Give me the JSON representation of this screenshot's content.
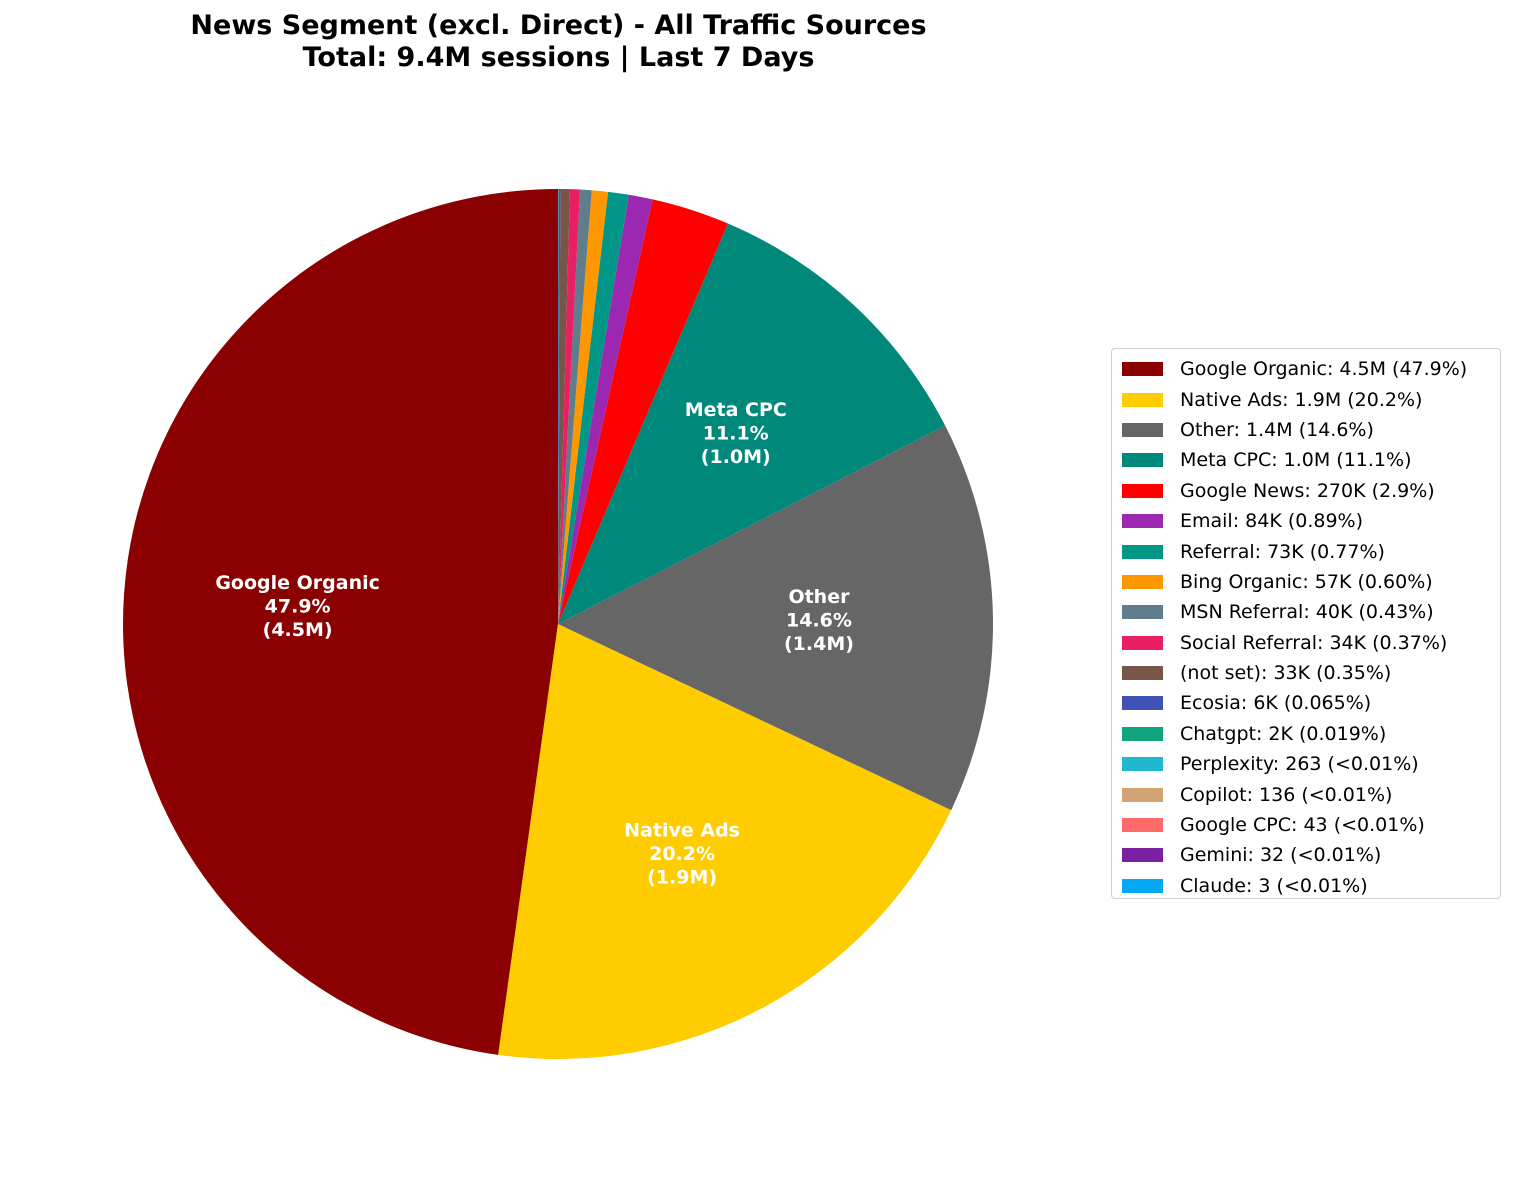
{
  "chart_data": {
    "type": "pie",
    "title": "News Segment (excl. Direct) - All Traffic Sources",
    "subtitle": "Total: 9.4M sessions | Last 7 Days",
    "total_sessions": "9.4M",
    "start_angle_deg": 90,
    "direction": "counterclockwise",
    "legend_position": "right",
    "slices": [
      {
        "name": "Google Organic",
        "value_label": "4.5M",
        "percent": 47.9,
        "percent_label": "47.9%",
        "color": "#8B0000",
        "legend": "Google Organic: 4.5M (47.9%)",
        "inner_label": [
          "Google Organic",
          "47.9%",
          "(4.5M)"
        ]
      },
      {
        "name": "Native Ads",
        "value_label": "1.9M",
        "percent": 20.2,
        "percent_label": "20.2%",
        "color": "#FFCC00",
        "legend": "Native Ads: 1.9M (20.2%)",
        "inner_label": [
          "Native Ads",
          "20.2%",
          "(1.9M)"
        ]
      },
      {
        "name": "Other",
        "value_label": "1.4M",
        "percent": 14.6,
        "percent_label": "14.6%",
        "color": "#666666",
        "legend": "Other: 1.4M (14.6%)",
        "inner_label": [
          "Other",
          "14.6%",
          "(1.4M)"
        ]
      },
      {
        "name": "Meta CPC",
        "value_label": "1.0M",
        "percent": 11.1,
        "percent_label": "11.1%",
        "color": "#00897B",
        "legend": "Meta CPC: 1.0M (11.1%)",
        "inner_label": [
          "Meta CPC",
          "11.1%",
          "(1.0M)"
        ]
      },
      {
        "name": "Google News",
        "value_label": "270K",
        "percent": 2.9,
        "percent_label": "2.9%",
        "color": "#FF0000",
        "legend": "Google News: 270K (2.9%)"
      },
      {
        "name": "Email",
        "value_label": "84K",
        "percent": 0.89,
        "percent_label": "0.89%",
        "color": "#9C27B0",
        "legend": "Email: 84K (0.89%)"
      },
      {
        "name": "Referral",
        "value_label": "73K",
        "percent": 0.77,
        "percent_label": "0.77%",
        "color": "#009688",
        "legend": "Referral: 73K (0.77%)"
      },
      {
        "name": "Bing Organic",
        "value_label": "57K",
        "percent": 0.6,
        "percent_label": "0.60%",
        "color": "#FF9800",
        "legend": "Bing Organic: 57K (0.60%)"
      },
      {
        "name": "MSN Referral",
        "value_label": "40K",
        "percent": 0.43,
        "percent_label": "0.43%",
        "color": "#607D8B",
        "legend": "MSN Referral: 40K (0.43%)"
      },
      {
        "name": "Social Referral",
        "value_label": "34K",
        "percent": 0.37,
        "percent_label": "0.37%",
        "color": "#E91E63",
        "legend": "Social Referral: 34K (0.37%)"
      },
      {
        "name": "(not set)",
        "value_label": "33K",
        "percent": 0.35,
        "percent_label": "0.35%",
        "color": "#795548",
        "legend": "(not set): 33K (0.35%)"
      },
      {
        "name": "Ecosia",
        "value_label": "6K",
        "percent": 0.065,
        "percent_label": "0.065%",
        "color": "#3F51B5",
        "legend": "Ecosia: 6K (0.065%)"
      },
      {
        "name": "Chatgpt",
        "value_label": "2K",
        "percent": 0.019,
        "percent_label": "0.019%",
        "color": "#10A37F",
        "legend": "Chatgpt: 2K (0.019%)"
      },
      {
        "name": "Perplexity",
        "value_label": "263",
        "percent": 0.0028,
        "percent_label": "<0.01%",
        "color": "#20B8CD",
        "legend": "Perplexity: 263 (<0.01%)"
      },
      {
        "name": "Copilot",
        "value_label": "136",
        "percent": 0.0014,
        "percent_label": "<0.01%",
        "color": "#D4A373",
        "legend": "Copilot: 136 (<0.01%)"
      },
      {
        "name": "Google CPC",
        "value_label": "43",
        "percent": 0.0005,
        "percent_label": "<0.01%",
        "color": "#FF6B6B",
        "legend": "Google CPC: 43 (<0.01%)"
      },
      {
        "name": "Gemini",
        "value_label": "32",
        "percent": 0.0003,
        "percent_label": "<0.01%",
        "color": "#7B1FA2",
        "legend": "Gemini: 32 (<0.01%)"
      },
      {
        "name": "Claude",
        "value_label": "3",
        "percent": 3e-05,
        "percent_label": "<0.01%",
        "color": "#03A9F4",
        "legend": "Claude: 3 (<0.01%)"
      }
    ]
  }
}
